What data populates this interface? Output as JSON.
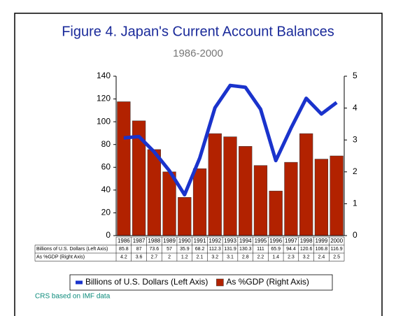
{
  "chart_data": {
    "type": "bar_line",
    "title": "Figure 4.  Japan's Current Account Balances",
    "subtitle": "1986-2000",
    "source": "CRS based on IMF data",
    "categories": [
      "1986",
      "1987",
      "1988",
      "1989",
      "1990",
      "1991",
      "1992",
      "1993",
      "1994",
      "1995",
      "1996",
      "1997",
      "1998",
      "1999",
      "2000"
    ],
    "series": [
      {
        "name": "Billions of U.S. Dollars (Left Axis)",
        "color": "#1a33cc",
        "type": "line",
        "axis": "y",
        "values": [
          85.8,
          87,
          73.6,
          57,
          35.9,
          68.2,
          112.3,
          131.9,
          130.3,
          111,
          65.9,
          94.4,
          120.6,
          106.8,
          116.9
        ]
      },
      {
        "name": "As %GDP (Right Axis)",
        "color": "#b22200",
        "type": "bar",
        "axis": "y2",
        "values": [
          4.2,
          3.6,
          2.7,
          2,
          1.2,
          2.1,
          3.2,
          3.1,
          2.8,
          2.2,
          1.4,
          2.3,
          3.2,
          2.4,
          2.5
        ]
      }
    ],
    "ylim": [
      0,
      140
    ],
    "yticks": [
      0,
      20,
      40,
      60,
      80,
      100,
      120,
      140
    ],
    "y2lim": [
      0,
      5
    ],
    "y2ticks": [
      0,
      1,
      2,
      3,
      4,
      5
    ]
  }
}
